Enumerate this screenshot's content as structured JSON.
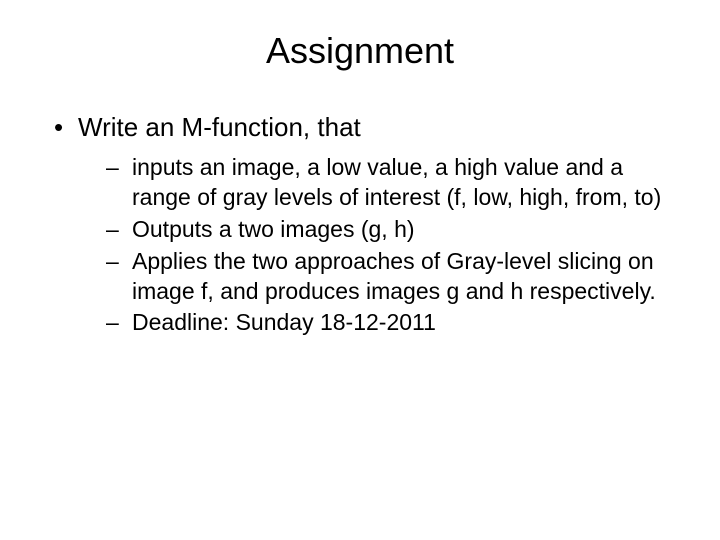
{
  "slide": {
    "title": "Assignment",
    "title_fontsize": 36,
    "background_color": "#ffffff",
    "text_color": "#000000",
    "body_fontsize_l1": 26,
    "body_fontsize_l2": 23,
    "bullet_l1": {
      "text": "Write an M-function, that",
      "sub": [
        "inputs an image, a low value, a high value and a range of gray levels of interest (f, low, high, from, to)",
        "Outputs a two images (g, h)",
        "Applies the two approaches of Gray-level slicing on image f, and produces images g and h respectively.",
        "Deadline: Sunday 18-12-2011"
      ]
    }
  }
}
